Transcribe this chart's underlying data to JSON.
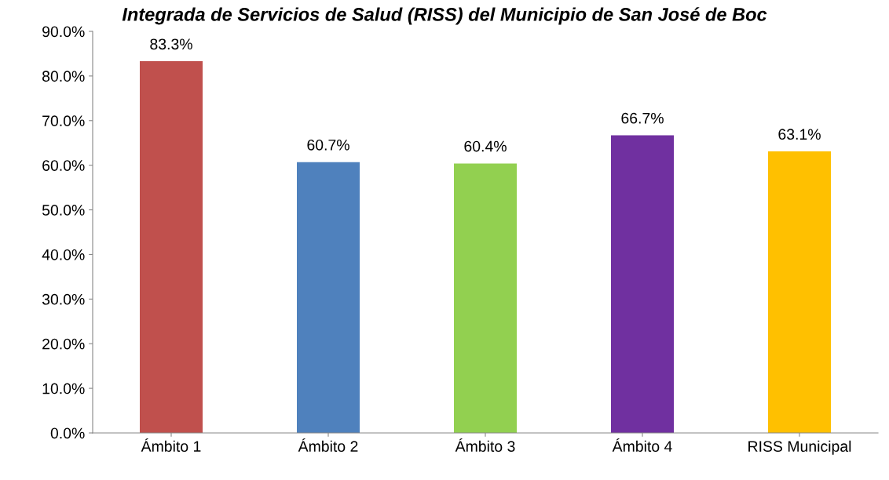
{
  "chart_data": {
    "type": "bar",
    "title": "Integrada de Servicios de Salud (RISS) del Municipio de San José de Boc",
    "categories": [
      "Ámbito 1",
      "Ámbito 2",
      "Ámbito 3",
      "Ámbito 4",
      "RISS Municipal"
    ],
    "values": [
      83.3,
      60.7,
      60.4,
      66.7,
      63.1
    ],
    "colors": [
      "#c0504d",
      "#4f81bd",
      "#92d050",
      "#7030a0",
      "#ffc000"
    ],
    "value_labels": [
      "83.3%",
      "60.7%",
      "60.4%",
      "66.7%",
      "63.1%"
    ],
    "ylim": [
      0,
      90
    ],
    "yticks": [
      {
        "value": 0,
        "label": "0.0%"
      },
      {
        "value": 10,
        "label": "10.0%"
      },
      {
        "value": 20,
        "label": "20.0%"
      },
      {
        "value": 30,
        "label": "30.0%"
      },
      {
        "value": 40,
        "label": "40.0%"
      },
      {
        "value": 50,
        "label": "50.0%"
      },
      {
        "value": 60,
        "label": "60.0%"
      },
      {
        "value": 70,
        "label": "70.0%"
      },
      {
        "value": 80,
        "label": "80.0%"
      },
      {
        "value": 90,
        "label": "90.0%"
      }
    ],
    "grid": false,
    "legend": false
  }
}
